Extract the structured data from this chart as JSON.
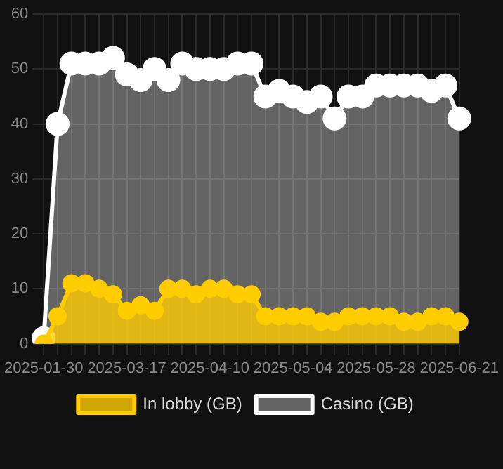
{
  "chart_data": {
    "type": "area",
    "categories": [
      "2025-01-30",
      null,
      null,
      null,
      null,
      null,
      "2025-03-17",
      null,
      null,
      null,
      null,
      null,
      "2025-04-10",
      null,
      null,
      null,
      null,
      null,
      "2025-05-04",
      null,
      null,
      null,
      null,
      null,
      "2025-05-28",
      null,
      null,
      null,
      null,
      null,
      "2025-06-21"
    ],
    "series": [
      {
        "name": "In lobby (GB)",
        "color": "#ffcc00",
        "values": [
          0,
          5,
          11,
          11,
          10,
          9,
          6,
          7,
          6,
          10,
          10,
          9,
          10,
          10,
          9,
          9,
          5,
          5,
          5,
          5,
          4,
          4,
          5,
          5,
          5,
          5,
          4,
          4,
          5,
          5,
          4
        ]
      },
      {
        "name": "Casino (GB)",
        "color": "#ffffff",
        "values": [
          1,
          40,
          51,
          51,
          51,
          52,
          49,
          48,
          50,
          48,
          51,
          50,
          50,
          50,
          51,
          51,
          45,
          46,
          45,
          44,
          45,
          41,
          45,
          45,
          47,
          47,
          47,
          47,
          46,
          47,
          41
        ]
      }
    ],
    "ylim": [
      0,
      60
    ],
    "yticks": [
      0,
      10,
      20,
      30,
      40,
      50,
      60
    ],
    "grid": true,
    "legend": "bottom",
    "marker": "circle"
  }
}
